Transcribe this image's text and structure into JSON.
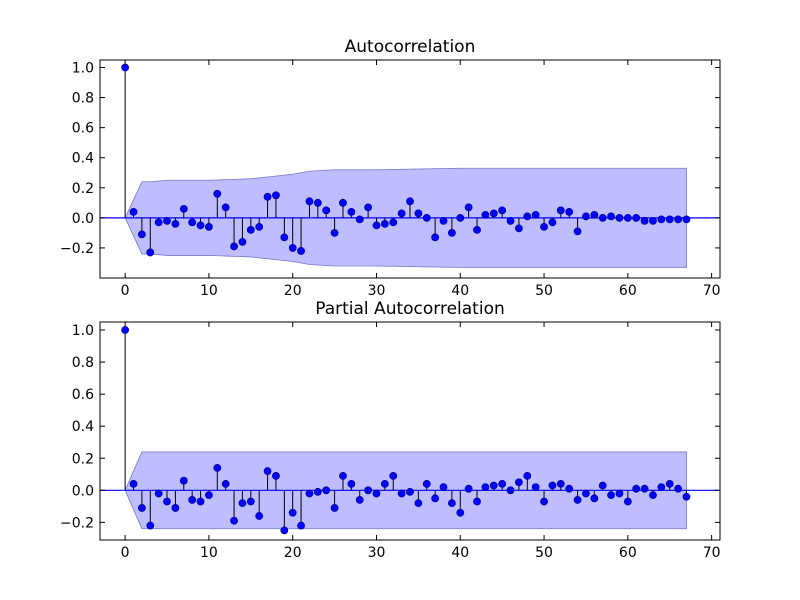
{
  "colors": {
    "marker": "#0000ff",
    "zero_line": "#0000ff",
    "stem": "#000000",
    "band_fill": "#9999ff",
    "band_edge": "#7777cc",
    "axes": "#000000"
  },
  "chart_data": [
    {
      "type": "stem",
      "title": "Autocorrelation",
      "xlim": [
        -3,
        71
      ],
      "ylim": [
        -0.4,
        1.05
      ],
      "xticks": [
        0,
        10,
        20,
        30,
        40,
        50,
        60,
        70
      ],
      "xtick_labels": [
        "0",
        "10",
        "20",
        "30",
        "40",
        "50",
        "60",
        "70"
      ],
      "yticks": [
        -0.2,
        0.0,
        0.2,
        0.4,
        0.6,
        0.8,
        1.0
      ],
      "ytick_labels": [
        "−0.2",
        "0.0",
        "0.2",
        "0.4",
        "0.6",
        "0.8",
        "1.0"
      ],
      "lags": [
        0,
        1,
        2,
        3,
        4,
        5,
        6,
        7,
        8,
        9,
        10,
        11,
        12,
        13,
        14,
        15,
        16,
        17,
        18,
        19,
        20,
        21,
        22,
        23,
        24,
        25,
        26,
        27,
        28,
        29,
        30,
        31,
        32,
        33,
        34,
        35,
        36,
        37,
        38,
        39,
        40,
        41,
        42,
        43,
        44,
        45,
        46,
        47,
        48,
        49,
        50,
        51,
        52,
        53,
        54,
        55,
        56,
        57,
        58,
        59,
        60,
        61,
        62,
        63,
        64,
        65,
        66,
        67
      ],
      "values": [
        1.0,
        0.04,
        -0.11,
        -0.23,
        -0.03,
        -0.02,
        -0.04,
        0.06,
        -0.03,
        -0.05,
        -0.06,
        0.16,
        0.07,
        -0.19,
        -0.16,
        -0.08,
        -0.06,
        0.14,
        0.15,
        -0.13,
        -0.2,
        -0.22,
        0.11,
        0.1,
        0.05,
        -0.1,
        0.1,
        0.04,
        -0.01,
        0.07,
        -0.05,
        -0.04,
        -0.03,
        0.03,
        0.11,
        0.03,
        0.0,
        -0.13,
        -0.02,
        -0.1,
        0.0,
        0.07,
        -0.08,
        0.02,
        0.03,
        0.05,
        -0.02,
        -0.07,
        0.01,
        0.02,
        -0.06,
        -0.03,
        0.05,
        0.04,
        -0.09,
        0.01,
        0.02,
        0.0,
        0.01,
        0.0,
        0.0,
        0.0,
        -0.02,
        -0.02,
        -0.01,
        -0.01,
        -0.01,
        -0.01
      ],
      "confidence_band": {
        "lags": [
          0,
          1,
          2,
          3,
          5,
          10,
          15,
          20,
          22,
          25,
          30,
          40,
          50,
          60,
          67
        ],
        "upper": [
          0.0,
          0.12,
          0.24,
          0.24,
          0.25,
          0.25,
          0.26,
          0.29,
          0.31,
          0.32,
          0.32,
          0.33,
          0.33,
          0.33,
          0.33
        ],
        "lower": [
          0.0,
          -0.12,
          -0.24,
          -0.24,
          -0.25,
          -0.25,
          -0.26,
          -0.29,
          -0.31,
          -0.32,
          -0.32,
          -0.33,
          -0.33,
          -0.33,
          -0.33
        ]
      },
      "xlabel": "",
      "ylabel": ""
    },
    {
      "type": "stem",
      "title": "Partial Autocorrelation",
      "xlim": [
        -3,
        71
      ],
      "ylim": [
        -0.31,
        1.05
      ],
      "xticks": [
        0,
        10,
        20,
        30,
        40,
        50,
        60,
        70
      ],
      "xtick_labels": [
        "0",
        "10",
        "20",
        "30",
        "40",
        "50",
        "60",
        "70"
      ],
      "yticks": [
        -0.2,
        0.0,
        0.2,
        0.4,
        0.6,
        0.8,
        1.0
      ],
      "ytick_labels": [
        "−0.2",
        "0.0",
        "0.2",
        "0.4",
        "0.6",
        "0.8",
        "1.0"
      ],
      "lags": [
        0,
        1,
        2,
        3,
        4,
        5,
        6,
        7,
        8,
        9,
        10,
        11,
        12,
        13,
        14,
        15,
        16,
        17,
        18,
        19,
        20,
        21,
        22,
        23,
        24,
        25,
        26,
        27,
        28,
        29,
        30,
        31,
        32,
        33,
        34,
        35,
        36,
        37,
        38,
        39,
        40,
        41,
        42,
        43,
        44,
        45,
        46,
        47,
        48,
        49,
        50,
        51,
        52,
        53,
        54,
        55,
        56,
        57,
        58,
        59,
        60,
        61,
        62,
        63,
        64,
        65,
        66,
        67
      ],
      "values": [
        1.0,
        0.04,
        -0.11,
        -0.22,
        -0.02,
        -0.07,
        -0.11,
        0.06,
        -0.06,
        -0.07,
        -0.03,
        0.14,
        0.04,
        -0.19,
        -0.08,
        -0.07,
        -0.16,
        0.12,
        0.09,
        -0.25,
        -0.14,
        -0.22,
        -0.02,
        -0.01,
        0.0,
        -0.11,
        0.09,
        0.04,
        -0.06,
        0.0,
        -0.02,
        0.04,
        0.09,
        -0.02,
        -0.01,
        -0.08,
        0.04,
        -0.05,
        0.02,
        -0.08,
        -0.14,
        0.01,
        -0.07,
        0.02,
        0.03,
        0.04,
        0.0,
        0.05,
        0.09,
        0.02,
        -0.07,
        0.03,
        0.04,
        0.01,
        -0.06,
        -0.02,
        -0.05,
        0.03,
        -0.03,
        -0.02,
        -0.07,
        0.01,
        0.01,
        -0.03,
        0.02,
        0.04,
        0.01,
        -0.04
      ],
      "confidence_band": {
        "lags": [
          0,
          1,
          2,
          67
        ],
        "upper": [
          0.0,
          0.12,
          0.24,
          0.24
        ],
        "lower": [
          0.0,
          -0.12,
          -0.24,
          -0.24
        ]
      },
      "xlabel": "",
      "ylabel": ""
    }
  ]
}
